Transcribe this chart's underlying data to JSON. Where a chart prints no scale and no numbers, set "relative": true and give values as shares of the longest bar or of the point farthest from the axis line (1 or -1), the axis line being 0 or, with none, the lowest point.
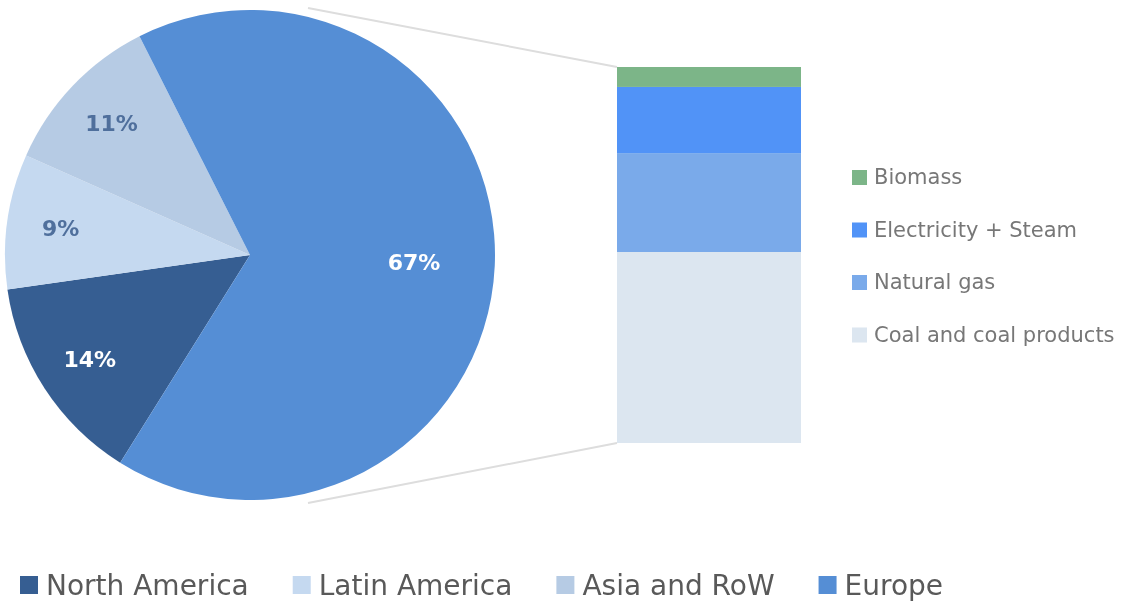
{
  "chart_data": [
    {
      "type": "pie",
      "categories": [
        "North America",
        "Latin America",
        "Asia and RoW",
        "Europe"
      ],
      "values": [
        14,
        9,
        11,
        67
      ],
      "colors": [
        "#365e92",
        "#c5d9f0",
        "#b6cbe4",
        "#558ed5"
      ],
      "value_labels": [
        "14%",
        "9%",
        "11%",
        "67%"
      ],
      "legend": "bottom"
    },
    {
      "type": "bar",
      "categories": [
        null
      ],
      "stacked": true,
      "relative": true,
      "legend": "right",
      "series": [
        {
          "name": "Coal and coal products",
          "color": "#dce6f0",
          "values": [
            0.508
          ]
        },
        {
          "name": "Natural gas",
          "color": "#7aaaea",
          "values": [
            0.263
          ]
        },
        {
          "name": "Electricity + Steam",
          "color": "#5193f7",
          "values": [
            0.176
          ]
        },
        {
          "name": "Biomass",
          "color": "#7cb588",
          "values": [
            0.053
          ]
        }
      ]
    }
  ]
}
